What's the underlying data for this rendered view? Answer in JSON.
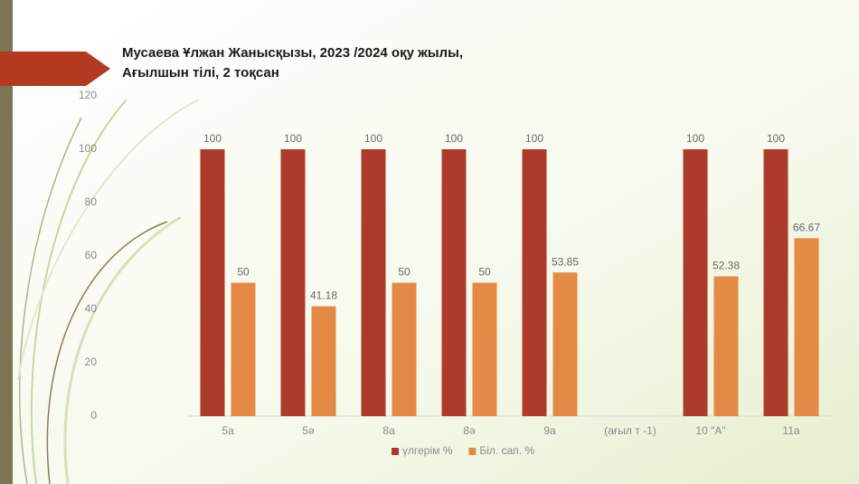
{
  "chart_data": {
    "type": "bar",
    "title": [
      "Мусаева Ұлжан Жанысқызы, 2023 /2024 оқу жылы,",
      "Ағылшын тілі, 2 тоқсан"
    ],
    "categories": [
      "5a",
      "5ә",
      "8a",
      "8ә",
      "9a",
      "(ағыл т -1)",
      "10 \"А\"",
      "11a"
    ],
    "series": [
      {
        "name": "үлгерім %",
        "color": "#ad3b2c",
        "values": [
          100,
          100,
          100,
          100,
          100,
          null,
          100,
          100
        ]
      },
      {
        "name": "Біл. сап. %",
        "color": "#e58a45",
        "values": [
          50,
          41.18,
          50,
          50,
          53.85,
          null,
          52.38,
          66.67
        ]
      }
    ],
    "ylim": [
      0,
      120
    ],
    "yticks": [
      0,
      20,
      40,
      60,
      80,
      100,
      120
    ],
    "grid": false,
    "legend": "bottom"
  }
}
